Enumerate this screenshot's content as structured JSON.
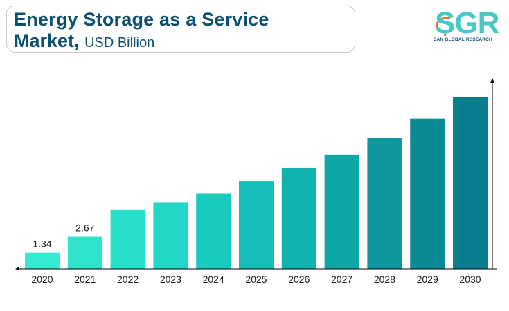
{
  "header": {
    "title_line1": "Energy Storage as a Service",
    "title_line2": "Market,",
    "unit": "USD Billion"
  },
  "logo": {
    "name": "SGR",
    "tagline": "SAN GLOBAL RESEARCH"
  },
  "chart_data": {
    "type": "bar",
    "categories": [
      "2020",
      "2021",
      "2022",
      "2023",
      "2024",
      "2025",
      "2026",
      "2027",
      "2028",
      "2029",
      "2030"
    ],
    "values": [
      1.34,
      2.67,
      4.9,
      5.5,
      6.3,
      7.3,
      8.4,
      9.5,
      10.9,
      12.5,
      14.3
    ],
    "data_labels": [
      "1.34",
      "2.67",
      "",
      "",
      "",
      "",
      "",
      "",
      "",
      "",
      ""
    ],
    "ylim": [
      0,
      15.3
    ],
    "colors": [
      "#33ead2",
      "#2ee3cc",
      "#27e0cc",
      "#22d7c6",
      "#1bcbbf",
      "#15bfb7",
      "#11b3ae",
      "#0fa6a6",
      "#0e989e",
      "#0c8b96",
      "#0a7e8e"
    ],
    "axis_color": "#000000"
  }
}
